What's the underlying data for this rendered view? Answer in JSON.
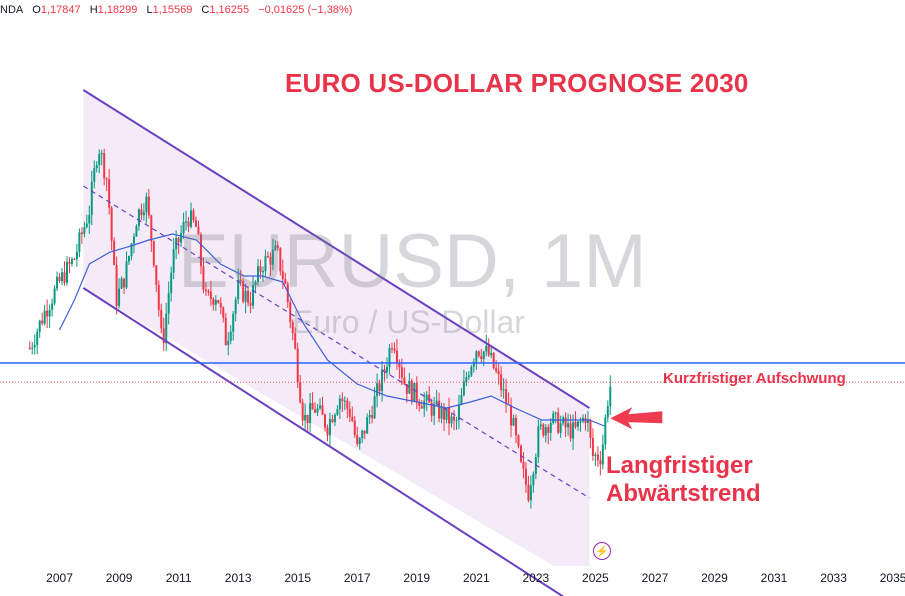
{
  "ohlc": {
    "symbol_tail": "NDA",
    "o_label": "O",
    "o": "1,17847",
    "h_label": "H",
    "h": "1,18299",
    "l_label": "L",
    "l": "1,15569",
    "c_label": "C",
    "c": "1,16255",
    "change": "−0,01625 (−1,38%)"
  },
  "title": "EURO US-DOLLAR PROGNOSE 2030",
  "watermark": {
    "symbol": "EURUSD, 1M",
    "description": "Euro / US-Dollar"
  },
  "annotations": {
    "short_term": "Kurzfristiger Aufschwung",
    "long_term_line1": "Langfristiger",
    "long_term_line2": "Abwärtstrend"
  },
  "flash_icon": "flash-icon",
  "colors": {
    "up": "#089981",
    "down": "#f23645",
    "accent": "#e8334a",
    "channel": "#6a3fc1",
    "ma": "#3d5fd9",
    "level": "#2962ff"
  },
  "chart_data": {
    "type": "candlestick",
    "x_ticks": [
      "2007",
      "2009",
      "2011",
      "2013",
      "2015",
      "2017",
      "2019",
      "2021",
      "2023",
      "2025",
      "2027",
      "2029",
      "2031",
      "2033",
      "2035"
    ],
    "xlim": [
      2005.0,
      2035.4
    ],
    "ylim": [
      0.8,
      1.8
    ],
    "series": [
      {
        "type": "line",
        "role": "close-path",
        "points": [
          [
            2006.0,
            1.22
          ],
          [
            2006.5,
            1.28
          ],
          [
            2007.0,
            1.33
          ],
          [
            2007.5,
            1.37
          ],
          [
            2008.0,
            1.45
          ],
          [
            2008.3,
            1.56
          ],
          [
            2008.6,
            1.5
          ],
          [
            2008.9,
            1.3
          ],
          [
            2009.2,
            1.34
          ],
          [
            2009.6,
            1.44
          ],
          [
            2009.9,
            1.47
          ],
          [
            2010.2,
            1.36
          ],
          [
            2010.45,
            1.22
          ],
          [
            2010.8,
            1.37
          ],
          [
            2011.3,
            1.44
          ],
          [
            2011.6,
            1.42
          ],
          [
            2011.9,
            1.3
          ],
          [
            2012.3,
            1.31
          ],
          [
            2012.6,
            1.23
          ],
          [
            2013.0,
            1.32
          ],
          [
            2013.4,
            1.3
          ],
          [
            2013.8,
            1.36
          ],
          [
            2014.3,
            1.38
          ],
          [
            2014.6,
            1.32
          ],
          [
            2014.9,
            1.22
          ],
          [
            2015.2,
            1.1
          ],
          [
            2015.6,
            1.12
          ],
          [
            2016.0,
            1.09
          ],
          [
            2016.4,
            1.14
          ],
          [
            2016.8,
            1.11
          ],
          [
            2017.0,
            1.05
          ],
          [
            2017.5,
            1.12
          ],
          [
            2017.9,
            1.18
          ],
          [
            2018.2,
            1.24
          ],
          [
            2018.6,
            1.16
          ],
          [
            2019.0,
            1.14
          ],
          [
            2019.5,
            1.12
          ],
          [
            2019.9,
            1.11
          ],
          [
            2020.3,
            1.09
          ],
          [
            2020.7,
            1.18
          ],
          [
            2021.0,
            1.22
          ],
          [
            2021.4,
            1.21
          ],
          [
            2021.8,
            1.16
          ],
          [
            2022.2,
            1.1
          ],
          [
            2022.5,
            1.02
          ],
          [
            2022.75,
            0.98
          ],
          [
            2023.1,
            1.08
          ],
          [
            2023.5,
            1.1
          ],
          [
            2023.9,
            1.09
          ],
          [
            2024.3,
            1.08
          ],
          [
            2024.7,
            1.11
          ],
          [
            2024.9,
            1.04
          ],
          [
            2025.2,
            1.04
          ],
          [
            2025.4,
            1.13
          ],
          [
            2025.55,
            1.17
          ]
        ]
      },
      {
        "type": "line",
        "name": "",
        "role": "moving-average",
        "points": [
          [
            2007.0,
            1.25
          ],
          [
            2007.5,
            1.3
          ],
          [
            2008.0,
            1.36
          ],
          [
            2008.7,
            1.38
          ],
          [
            2009.4,
            1.39
          ],
          [
            2010.0,
            1.4
          ],
          [
            2010.8,
            1.41
          ],
          [
            2011.6,
            1.4
          ],
          [
            2012.4,
            1.36
          ],
          [
            2013.2,
            1.34
          ],
          [
            2013.8,
            1.34
          ],
          [
            2014.5,
            1.33
          ],
          [
            2015.2,
            1.26
          ],
          [
            2016.0,
            1.2
          ],
          [
            2017.0,
            1.16
          ],
          [
            2018.0,
            1.14
          ],
          [
            2019.0,
            1.13
          ],
          [
            2020.0,
            1.12
          ],
          [
            2020.8,
            1.13
          ],
          [
            2021.5,
            1.14
          ],
          [
            2022.3,
            1.12
          ],
          [
            2023.2,
            1.1
          ],
          [
            2024.0,
            1.1
          ],
          [
            2024.8,
            1.1
          ],
          [
            2025.3,
            1.09
          ]
        ]
      }
    ],
    "channel": {
      "upper": [
        [
          2007.8,
          1.65
        ],
        [
          2024.8,
          1.12
        ]
      ],
      "lower": [
        [
          2007.8,
          1.32
        ],
        [
          2024.1,
          0.8
        ]
      ],
      "mid": [
        [
          2007.8,
          1.49
        ],
        [
          2024.8,
          0.97
        ]
      ]
    },
    "horizontal_level": 1.195,
    "current_price_line": 1.163
  }
}
